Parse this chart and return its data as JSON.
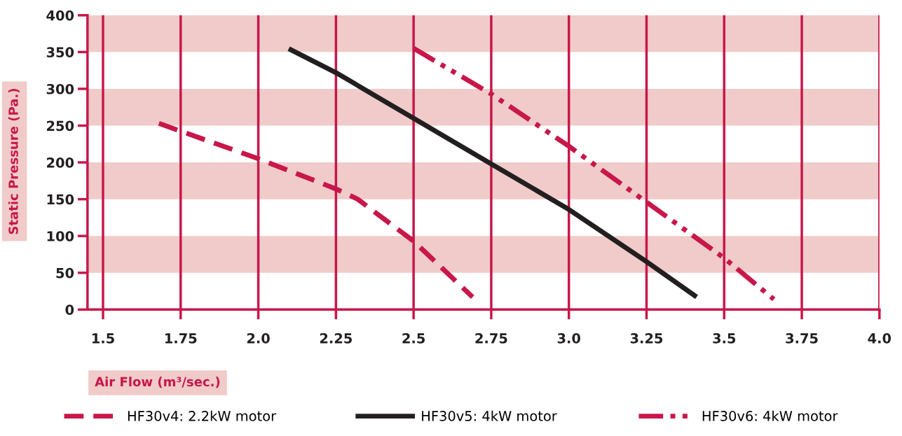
{
  "chart_data": {
    "type": "line",
    "xlabel": "Air Flow (m³/sec.)",
    "ylabel": "Static Pressure (Pa.)",
    "xlim": [
      1.45,
      4.0
    ],
    "xticks": [
      1.5,
      1.75,
      {
        "value": 2.0,
        "label": "2.0"
      },
      2.25,
      2.5,
      2.75,
      {
        "value": 3.0,
        "label": "3.0"
      },
      3.25,
      3.5,
      3.75,
      {
        "value": 4.0,
        "label": "4.0"
      }
    ],
    "ylim": [
      0,
      400
    ],
    "yticks": [
      0,
      50,
      100,
      150,
      200,
      250,
      300,
      350,
      400
    ],
    "grid": "x",
    "legend": "bottom",
    "marker": "none",
    "bands": [
      {
        "axis": "y",
        "from": 50,
        "to": 100,
        "color": "#f0cbc9"
      },
      {
        "axis": "y",
        "from": 150,
        "to": 200,
        "color": "#f0cbc9"
      },
      {
        "axis": "y",
        "from": 250,
        "to": 300,
        "color": "#f0cbc9"
      },
      {
        "axis": "y",
        "from": 350,
        "to": 400,
        "color": "#f0cbc9"
      }
    ],
    "series": [
      {
        "name": "HF30v4: 2.2kW motor",
        "color": "#c8174a",
        "line_style": "dashed",
        "x": [
          1.68,
          2.0,
          2.25,
          2.32,
          2.5,
          2.69
        ],
        "values": [
          253,
          205,
          164,
          150,
          93,
          17
        ]
      },
      {
        "name": "HF30v5: 4kW motor",
        "color": "#231f20",
        "line_style": "solid",
        "x": [
          2.105,
          2.25,
          2.375,
          2.5,
          2.75,
          3.0,
          3.25,
          3.405
        ],
        "values": [
          353,
          322,
          291,
          260,
          198,
          136,
          65,
          19
        ]
      },
      {
        "name": "HF30v6: 4kW motor",
        "color": "#c8174a",
        "line_style": "dashdot",
        "x": [
          2.5,
          2.75,
          3.0,
          3.25,
          3.5,
          3.66
        ],
        "values": [
          355,
          293,
          222,
          146,
          70,
          14
        ]
      }
    ]
  }
}
